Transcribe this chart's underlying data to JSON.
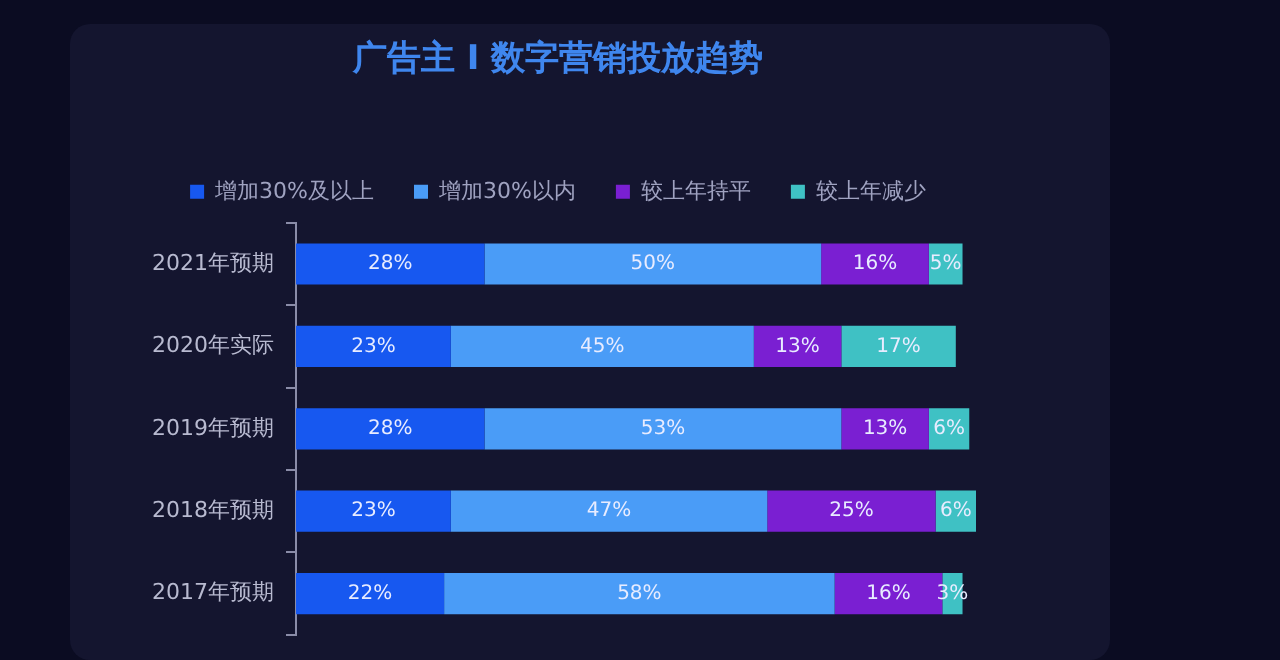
{
  "chart_data": {
    "type": "bar",
    "orientation": "horizontal",
    "stacked": true,
    "title": "广告主 I 数字营销投放趋势",
    "legend": "top",
    "categories": [
      "2021年预期",
      "2020年实际",
      "2019年预期",
      "2018年预期",
      "2017年预期"
    ],
    "series": [
      {
        "name": "增加30%及以上",
        "color": "#1758f0",
        "values": [
          28,
          23,
          28,
          23,
          22
        ],
        "value_labels": [
          "28%",
          "23%",
          "28%",
          "23%",
          "22%"
        ]
      },
      {
        "name": "增加30%以内",
        "color": "#4a9cf7",
        "values": [
          50,
          45,
          53,
          47,
          58
        ],
        "value_labels": [
          "50%",
          "45%",
          "53%",
          "47%",
          "58%"
        ]
      },
      {
        "name": "较上年持平",
        "color": "#7a1fd2",
        "values": [
          16,
          13,
          13,
          25,
          16
        ],
        "value_labels": [
          "16%",
          "13%",
          "13%",
          "25%",
          "16%"
        ]
      },
      {
        "name": "较上年减少",
        "color": "#3fc1c4",
        "values": [
          5,
          17,
          6,
          6,
          3
        ],
        "value_labels": [
          "5%",
          "17%",
          "6%",
          "6%",
          "3%"
        ]
      }
    ]
  }
}
